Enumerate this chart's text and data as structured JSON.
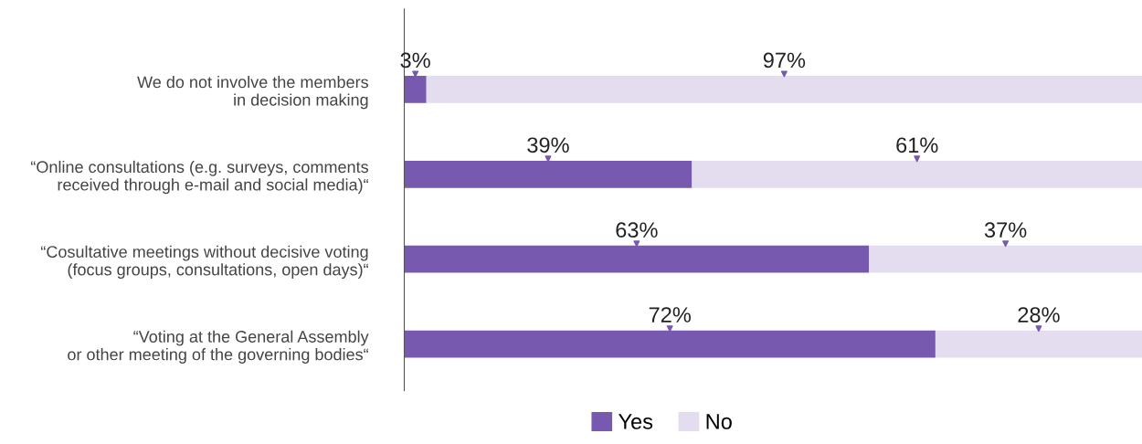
{
  "chart_data": {
    "type": "bar",
    "orientation": "horizontal",
    "stacked": true,
    "categories": [
      "We do not involve the members\nin decision making",
      "“Online consultations (e.g. surveys, comments\nreceived through e-mail and social media)“",
      "“Cosultative meetings without decisive voting\n(focus groups, consultations, open days)“",
      "“Voting at the General Assembly\nor other meeting of the governing bodies“"
    ],
    "series": [
      {
        "name": "Yes",
        "color": "#7759b0",
        "values": [
          3,
          39,
          63,
          72
        ],
        "value_labels": [
          "3%",
          "39%",
          "63%",
          "72%"
        ]
      },
      {
        "name": "No",
        "color": "#e3ddef",
        "values": [
          97,
          61,
          37,
          28
        ],
        "value_labels": [
          "97%",
          "61%",
          "37%",
          "28%"
        ]
      }
    ],
    "xlim": [
      0,
      100
    ],
    "tick_labels": "y",
    "legend": "bottom",
    "grid": false
  }
}
